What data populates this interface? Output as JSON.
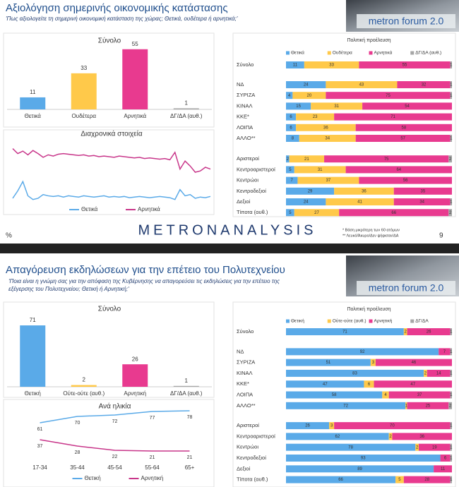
{
  "slides": [
    {
      "title": "Αξιολόγηση σημερινής οικονομικής κατάστασης",
      "subtitle": "'Πως αξιολογείτε τη σημερινή οικονομική κατάσταση της χώρας; Θετικά, ουδέτερα ή αρνητικά;'",
      "logo": "metron forum 2.0",
      "footer": {
        "unit": "%",
        "brand": "METRONANALYSIS",
        "notes": [
          "* Βάση μικρότερη των 60 ατόμων",
          "** Λευκό/Άκυρο/Δεν ψήφισαν/ΔΑ"
        ],
        "page": "9"
      }
    },
    {
      "title": "Απαγόρευση εκδηλώσεων για την επέτειο του Πολυτεχνείου",
      "subtitle": [
        "'Ποια είναι η γνώμη σας για την απόφαση της Κυβέρνησης να απαγορεύσει τις εκδηλώσεις για την επέτειο της",
        "εξέγερσης του Πολυτεχνείου; Θετική ή Αρνητική;'"
      ],
      "logo": "metron forum 2.0"
    }
  ],
  "chart_data": [
    {
      "type": "bar",
      "title": "Σύνολο",
      "categories": [
        "Θετικά",
        "Ουδέτερα",
        "Αρνητικά",
        "ΔΓ/ΔΑ (αυθ.)"
      ],
      "values": [
        11,
        33,
        55,
        1
      ],
      "colors": [
        "#5aaae8",
        "#ffc94a",
        "#e83a8f",
        "#a6a6a6"
      ],
      "ylim": [
        0,
        60
      ]
    },
    {
      "type": "line",
      "title": "Διαχρονικά στοιχεία",
      "ylim": [
        0,
        100
      ],
      "series": [
        {
          "name": "Θετικά",
          "color": "#5aaae8",
          "values": [
            8,
            20,
            35,
            12,
            6,
            8,
            14,
            12,
            11,
            12,
            10,
            12,
            11,
            10,
            12,
            11,
            10,
            11,
            12,
            10,
            11,
            10,
            11,
            9,
            10,
            11,
            10,
            9,
            10,
            11,
            10,
            9,
            6,
            22,
            12,
            14,
            8,
            10,
            9,
            11
          ]
        },
        {
          "name": "Αρνητικά",
          "color": "#c8368a",
          "values": [
            88,
            80,
            84,
            78,
            85,
            80,
            74,
            78,
            76,
            79,
            80,
            79,
            78,
            77,
            78,
            76,
            77,
            75,
            76,
            75,
            74,
            76,
            75,
            74,
            73,
            74,
            72,
            73,
            72,
            71,
            72,
            70,
            82,
            55,
            68,
            60,
            50,
            52,
            58,
            55
          ]
        }
      ]
    },
    {
      "type": "stacked-bar",
      "title": "Πολιτική προέλευση",
      "xlim": [
        0,
        100
      ],
      "categories": [
        "Σύνολο",
        "ΝΔ",
        "ΣΥΡΙΖΑ",
        "ΚΙΝΑΛ",
        "ΚΚΕ*",
        "ΛΟΙΠΑ",
        "ΑΛΛΟ**",
        "Αριστεροί",
        "Κεντροαριστεροί",
        "Κεντρώοι",
        "Κεντροδεξιοί",
        "Δεξιοί",
        "Τίποτα (αυθ.)"
      ],
      "series": [
        {
          "name": "Θετικά",
          "color": "#5aaae8",
          "values": [
            11,
            24,
            4,
            15,
            6,
            6,
            8,
            2,
            5,
            7,
            29,
            24,
            5
          ]
        },
        {
          "name": "Ουδέτερα",
          "color": "#ffc94a",
          "values": [
            33,
            43,
            20,
            31,
            23,
            36,
            34,
            21,
            31,
            37,
            36,
            41,
            27
          ]
        },
        {
          "name": "Αρνητικά",
          "color": "#e83a8f",
          "values": [
            55,
            32,
            75,
            54,
            71,
            58,
            57,
            75,
            64,
            56,
            35,
            34,
            66
          ]
        },
        {
          "name": "ΔΓ/ΔΑ (αυθ.)",
          "color": "#a6a6a6",
          "values": [
            1,
            1,
            1,
            null,
            null,
            null,
            1,
            2,
            null,
            null,
            null,
            1,
            2
          ]
        }
      ]
    },
    {
      "type": "bar",
      "title": "Σύνολο",
      "categories": [
        "Θετική",
        "Ούτε-ούτε (αυθ.)",
        "Αρνητική",
        "ΔΓ/ΔΑ (αυθ.)"
      ],
      "values": [
        71,
        2,
        26,
        1
      ],
      "colors": [
        "#5aaae8",
        "#ffc94a",
        "#e83a8f",
        "#a6a6a6"
      ],
      "ylim": [
        0,
        80
      ]
    },
    {
      "type": "line",
      "title": "Ανά ηλικία",
      "ylim": [
        10,
        90
      ],
      "data_labels": true,
      "categories": [
        "17-34",
        "35-44",
        "45-54",
        "55-64",
        "65+"
      ],
      "series": [
        {
          "name": "Θετική",
          "color": "#5aaae8",
          "values": [
            61,
            70,
            72,
            77,
            78
          ]
        },
        {
          "name": "Αρνητική",
          "color": "#c8368a",
          "values": [
            37,
            28,
            22,
            21,
            21
          ]
        }
      ]
    },
    {
      "type": "stacked-bar",
      "title": "Πολιτική προέλευση",
      "xlim": [
        0,
        100
      ],
      "categories": [
        "Σύνολο",
        "ΝΔ",
        "ΣΥΡΙΖΑ",
        "ΚΙΝΑΛ",
        "ΚΚΕ*",
        "ΛΟΙΠΑ",
        "ΑΛΛΟ**",
        "Αριστεροί",
        "Κεντροαριστεροί",
        "Κεντρώοι",
        "Κεντροδεξιοί",
        "Δεξιοί",
        "Τίποτα (αυθ.)"
      ],
      "series": [
        {
          "name": "Θετική",
          "color": "#5aaae8",
          "values": [
            71,
            92,
            51,
            83,
            47,
            58,
            72,
            26,
            62,
            78,
            93,
            89,
            66
          ]
        },
        {
          "name": "Ούτε-ούτε (αυθ.)",
          "color": "#ffc94a",
          "values": [
            2,
            null,
            3,
            2,
            6,
            4,
            1,
            3,
            2,
            2,
            null,
            null,
            5
          ]
        },
        {
          "name": "Αρνητική",
          "color": "#e83a8f",
          "values": [
            26,
            7,
            46,
            14,
            47,
            37,
            25,
            70,
            36,
            19,
            6,
            11,
            28
          ]
        },
        {
          "name": "ΔΓ/ΔΑ",
          "color": "#a6a6a6",
          "values": [
            1,
            1,
            null,
            1,
            null,
            1,
            2,
            1,
            null,
            1,
            1,
            null,
            1
          ]
        }
      ]
    }
  ]
}
